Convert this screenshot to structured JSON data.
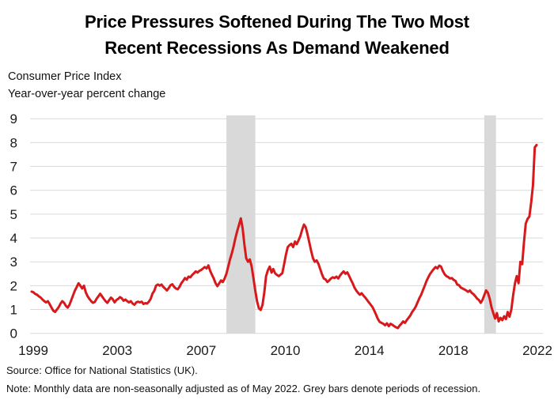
{
  "title_lines": [
    "Price Pressures Softened During The Two Most",
    "Recent Recessions As Demand Weakened"
  ],
  "subtitle_lines": [
    "Consumer Price Index",
    "Year-over-year percent change"
  ],
  "footer": {
    "source": "Source: Office for National Statistics (UK).",
    "note": "Note: Monthly data are non-seasonally adjusted as of May 2022. Grey bars denote periods of recession."
  },
  "chart_data": {
    "type": "line",
    "title": "Price Pressures Softened During The Two Most Recent Recessions As Demand Weakened",
    "xlabel": "",
    "ylabel": "Year-over-year percent change",
    "ylim": [
      0,
      9
    ],
    "grid": true,
    "legend": false,
    "x_tick_labels": [
      "1999",
      "2003",
      "2007",
      "2010",
      "2014",
      "2018",
      "2022"
    ],
    "y_ticks": [
      0,
      1,
      2,
      3,
      4,
      5,
      6,
      7,
      8,
      9
    ],
    "x_start": "1999-01",
    "x_end": "2022-05",
    "line_color": "#d7191c",
    "recession_color": "#d9d9d9",
    "gridline_color": "#d9d9d9",
    "recession_spans_month_index": [
      [
        108,
        124
      ],
      [
        251,
        257.5
      ]
    ],
    "series": [
      {
        "name": "UK Consumer Price Index, year-over-year percent change (monthly)",
        "values": [
          1.75,
          1.72,
          1.65,
          1.62,
          1.55,
          1.5,
          1.42,
          1.35,
          1.3,
          1.35,
          1.22,
          1.08,
          0.95,
          0.9,
          1.0,
          1.1,
          1.25,
          1.35,
          1.28,
          1.15,
          1.08,
          1.2,
          1.4,
          1.6,
          1.8,
          1.95,
          2.1,
          2.0,
          1.88,
          2.0,
          1.72,
          1.56,
          1.45,
          1.35,
          1.28,
          1.32,
          1.45,
          1.55,
          1.66,
          1.55,
          1.45,
          1.35,
          1.28,
          1.4,
          1.5,
          1.43,
          1.3,
          1.4,
          1.45,
          1.52,
          1.47,
          1.37,
          1.42,
          1.35,
          1.3,
          1.35,
          1.25,
          1.2,
          1.3,
          1.33,
          1.3,
          1.33,
          1.23,
          1.27,
          1.25,
          1.33,
          1.45,
          1.67,
          1.78,
          2.0,
          2.05,
          2.0,
          2.05,
          1.95,
          1.88,
          1.8,
          1.9,
          2.02,
          2.06,
          1.95,
          1.88,
          1.85,
          1.95,
          2.1,
          2.2,
          2.32,
          2.25,
          2.38,
          2.35,
          2.45,
          2.52,
          2.6,
          2.55,
          2.62,
          2.66,
          2.72,
          2.78,
          2.72,
          2.85,
          2.62,
          2.45,
          2.3,
          2.1,
          1.98,
          2.1,
          2.22,
          2.15,
          2.3,
          2.5,
          2.8,
          3.1,
          3.35,
          3.65,
          4.0,
          4.3,
          4.55,
          4.82,
          4.4,
          3.7,
          3.15,
          3.0,
          3.1,
          2.8,
          2.3,
          1.8,
          1.35,
          1.05,
          0.98,
          1.2,
          1.7,
          2.4,
          2.65,
          2.8,
          2.55,
          2.7,
          2.52,
          2.45,
          2.4,
          2.46,
          2.52,
          2.9,
          3.3,
          3.62,
          3.7,
          3.76,
          3.62,
          3.85,
          3.74,
          3.9,
          4.08,
          4.35,
          4.56,
          4.45,
          4.15,
          3.8,
          3.45,
          3.15,
          3.0,
          3.06,
          2.92,
          2.7,
          2.48,
          2.3,
          2.26,
          2.15,
          2.22,
          2.3,
          2.35,
          2.32,
          2.38,
          2.3,
          2.42,
          2.52,
          2.6,
          2.5,
          2.56,
          2.42,
          2.25,
          2.1,
          1.92,
          1.8,
          1.7,
          1.62,
          1.68,
          1.58,
          1.5,
          1.4,
          1.3,
          1.2,
          1.1,
          0.95,
          0.78,
          0.6,
          0.48,
          0.44,
          0.4,
          0.34,
          0.42,
          0.3,
          0.4,
          0.36,
          0.3,
          0.26,
          0.22,
          0.32,
          0.4,
          0.5,
          0.44,
          0.55,
          0.65,
          0.75,
          0.9,
          1.0,
          1.12,
          1.3,
          1.48,
          1.62,
          1.82,
          2.0,
          2.2,
          2.36,
          2.5,
          2.6,
          2.7,
          2.78,
          2.72,
          2.84,
          2.8,
          2.62,
          2.48,
          2.4,
          2.36,
          2.3,
          2.32,
          2.24,
          2.2,
          2.05,
          2.02,
          1.92,
          1.88,
          1.84,
          1.8,
          1.74,
          1.8,
          1.7,
          1.64,
          1.56,
          1.46,
          1.4,
          1.28,
          1.4,
          1.6,
          1.8,
          1.7,
          1.45,
          1.1,
          0.85,
          0.62,
          0.85,
          0.5,
          0.65,
          0.55,
          0.72,
          0.6,
          0.9,
          0.7,
          1.0,
          1.6,
          2.1,
          2.4,
          2.1,
          3.0,
          2.9,
          3.8,
          4.6,
          4.8,
          4.9,
          5.5,
          6.2,
          7.8,
          7.9
        ]
      }
    ]
  }
}
